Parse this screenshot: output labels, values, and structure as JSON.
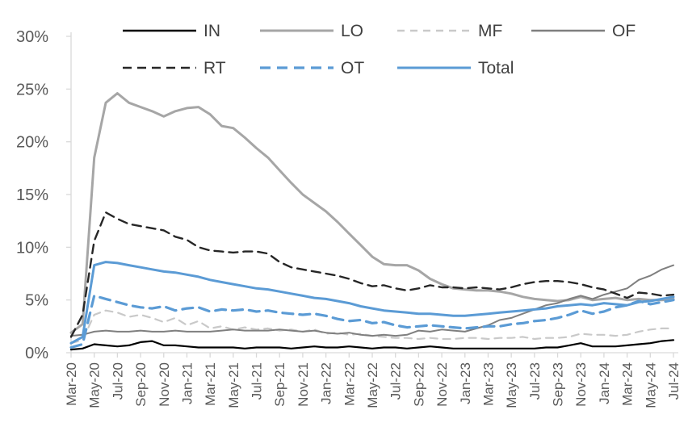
{
  "chart_data": {
    "type": "line",
    "title": "",
    "xlabel": "",
    "ylabel": "",
    "ylim": [
      0,
      30
    ],
    "yticks": [
      0,
      5,
      10,
      15,
      20,
      25,
      30
    ],
    "ytick_suffix": "%",
    "x_tick_every": 2,
    "grid": false,
    "legend_position": "top-inside-two-rows",
    "legend_rows": [
      [
        "IN",
        "LO",
        "MF",
        "OF"
      ],
      [
        "RT",
        "OT",
        "Total"
      ]
    ],
    "colors": {
      "axis": "#d9d9d9",
      "tick": "#d9d9d9",
      "tick_label": "#595959",
      "legend_label": "#404040",
      "background": "#ffffff"
    },
    "x": [
      "Mar-20",
      "Apr-20",
      "May-20",
      "Jun-20",
      "Jul-20",
      "Aug-20",
      "Sep-20",
      "Oct-20",
      "Nov-20",
      "Dec-20",
      "Jan-21",
      "Feb-21",
      "Mar-21",
      "Apr-21",
      "May-21",
      "Jun-21",
      "Jul-21",
      "Aug-21",
      "Sep-21",
      "Oct-21",
      "Nov-21",
      "Dec-21",
      "Jan-22",
      "Feb-22",
      "Mar-22",
      "Apr-22",
      "May-22",
      "Jun-22",
      "Jul-22",
      "Aug-22",
      "Sep-22",
      "Oct-22",
      "Nov-22",
      "Dec-22",
      "Jan-23",
      "Feb-23",
      "Mar-23",
      "Apr-23",
      "May-23",
      "Jun-23",
      "Jul-23",
      "Aug-23",
      "Sep-23",
      "Oct-23",
      "Nov-23",
      "Dec-23",
      "Jan-24",
      "Feb-24",
      "Mar-24",
      "Apr-24",
      "May-24",
      "Jun-24",
      "Jul-24"
    ],
    "series": [
      {
        "name": "IN",
        "color": "#000000",
        "dash": null,
        "width": 2.2,
        "values": [
          0.3,
          0.4,
          0.8,
          0.7,
          0.6,
          0.7,
          1.0,
          1.1,
          0.7,
          0.7,
          0.6,
          0.5,
          0.5,
          0.5,
          0.5,
          0.4,
          0.5,
          0.5,
          0.5,
          0.4,
          0.5,
          0.6,
          0.5,
          0.5,
          0.6,
          0.5,
          0.4,
          0.5,
          0.5,
          0.4,
          0.5,
          0.6,
          0.5,
          0.4,
          0.4,
          0.4,
          0.4,
          0.4,
          0.4,
          0.4,
          0.4,
          0.5,
          0.5,
          0.7,
          0.9,
          0.6,
          0.6,
          0.6,
          0.7,
          0.8,
          0.9,
          1.1,
          1.2
        ]
      },
      {
        "name": "LO",
        "color": "#a6a6a6",
        "dash": null,
        "width": 3,
        "values": [
          1.9,
          2.7,
          18.5,
          23.7,
          24.6,
          23.7,
          23.3,
          22.9,
          22.4,
          22.9,
          23.2,
          23.3,
          22.6,
          21.5,
          21.3,
          20.4,
          19.4,
          18.5,
          17.3,
          16.1,
          15.0,
          14.2,
          13.4,
          12.4,
          11.3,
          10.2,
          9.1,
          8.4,
          8.3,
          8.3,
          7.8,
          7.0,
          6.5,
          6.1,
          6.0,
          5.9,
          5.9,
          5.8,
          5.6,
          5.3,
          5.1,
          5.0,
          4.9,
          5.0,
          5.3,
          5.0,
          5.1,
          5.2,
          5.0,
          5.1,
          5.0,
          5.0,
          5.1
        ]
      },
      {
        "name": "MF",
        "color": "#c9c9c9",
        "dash": "9 7",
        "width": 2.2,
        "values": [
          0.9,
          1.2,
          3.6,
          4.0,
          3.8,
          3.4,
          3.6,
          3.3,
          2.9,
          3.3,
          2.6,
          3.0,
          2.3,
          2.5,
          2.2,
          2.4,
          2.2,
          2.3,
          2.1,
          2.2,
          2.0,
          2.2,
          1.8,
          1.9,
          1.7,
          1.8,
          1.6,
          1.5,
          1.4,
          1.4,
          1.3,
          1.4,
          1.3,
          1.3,
          1.4,
          1.4,
          1.3,
          1.4,
          1.4,
          1.5,
          1.3,
          1.4,
          1.4,
          1.5,
          1.8,
          1.7,
          1.7,
          1.6,
          1.7,
          2.0,
          2.2,
          2.3,
          2.3
        ]
      },
      {
        "name": "OF",
        "color": "#7f7f7f",
        "dash": null,
        "width": 2,
        "values": [
          1.6,
          1.7,
          2.0,
          2.1,
          2.0,
          2.0,
          2.1,
          2.0,
          2.0,
          2.1,
          2.0,
          2.0,
          2.0,
          2.1,
          2.2,
          2.1,
          2.1,
          2.1,
          2.2,
          2.1,
          2.0,
          2.1,
          1.9,
          1.8,
          1.9,
          1.7,
          1.6,
          1.7,
          1.6,
          1.7,
          2.1,
          2.0,
          2.2,
          2.1,
          2.0,
          2.3,
          2.6,
          3.1,
          3.3,
          3.7,
          4.1,
          4.5,
          4.7,
          5.1,
          5.4,
          5.1,
          5.5,
          5.8,
          6.1,
          6.9,
          7.3,
          7.9,
          8.3
        ]
      },
      {
        "name": "RT",
        "color": "#262626",
        "dash": "11 7",
        "width": 2.4,
        "values": [
          1.5,
          3.6,
          10.6,
          13.3,
          12.7,
          12.2,
          12.0,
          11.8,
          11.6,
          11.0,
          10.7,
          10.0,
          9.7,
          9.6,
          9.5,
          9.6,
          9.6,
          9.4,
          8.6,
          8.1,
          7.9,
          7.7,
          7.5,
          7.3,
          7.0,
          6.6,
          6.3,
          6.4,
          6.1,
          5.9,
          6.1,
          6.4,
          6.2,
          6.2,
          6.1,
          6.2,
          6.1,
          6.0,
          6.2,
          6.5,
          6.7,
          6.8,
          6.8,
          6.7,
          6.5,
          6.2,
          6.0,
          5.6,
          5.2,
          5.7,
          5.6,
          5.4,
          5.5
        ]
      },
      {
        "name": "OT",
        "color": "#5b9bd5",
        "dash": "13 8",
        "width": 3.2,
        "values": [
          0.5,
          0.8,
          5.4,
          5.1,
          4.8,
          4.5,
          4.3,
          4.2,
          4.4,
          4.0,
          4.2,
          4.3,
          3.9,
          4.1,
          4.0,
          4.1,
          3.9,
          4.0,
          3.8,
          3.7,
          3.6,
          3.7,
          3.5,
          3.2,
          3.0,
          3.1,
          2.8,
          2.9,
          2.6,
          2.4,
          2.5,
          2.6,
          2.5,
          2.4,
          2.3,
          2.4,
          2.5,
          2.5,
          2.7,
          2.8,
          3.0,
          3.1,
          3.3,
          3.6,
          4.0,
          3.7,
          3.9,
          4.3,
          4.5,
          4.9,
          4.6,
          4.8,
          5.0
        ]
      },
      {
        "name": "Total",
        "color": "#5b9bd5",
        "dash": null,
        "width": 3,
        "values": [
          0.9,
          1.5,
          8.3,
          8.6,
          8.5,
          8.3,
          8.1,
          7.9,
          7.7,
          7.6,
          7.4,
          7.2,
          6.9,
          6.7,
          6.5,
          6.3,
          6.1,
          6.0,
          5.8,
          5.6,
          5.4,
          5.2,
          5.1,
          4.9,
          4.7,
          4.4,
          4.2,
          4.0,
          3.9,
          3.8,
          3.7,
          3.7,
          3.6,
          3.5,
          3.5,
          3.6,
          3.7,
          3.8,
          3.9,
          4.0,
          4.1,
          4.2,
          4.4,
          4.5,
          4.6,
          4.5,
          4.7,
          4.6,
          4.5,
          4.8,
          4.9,
          5.1,
          5.3
        ]
      }
    ]
  }
}
